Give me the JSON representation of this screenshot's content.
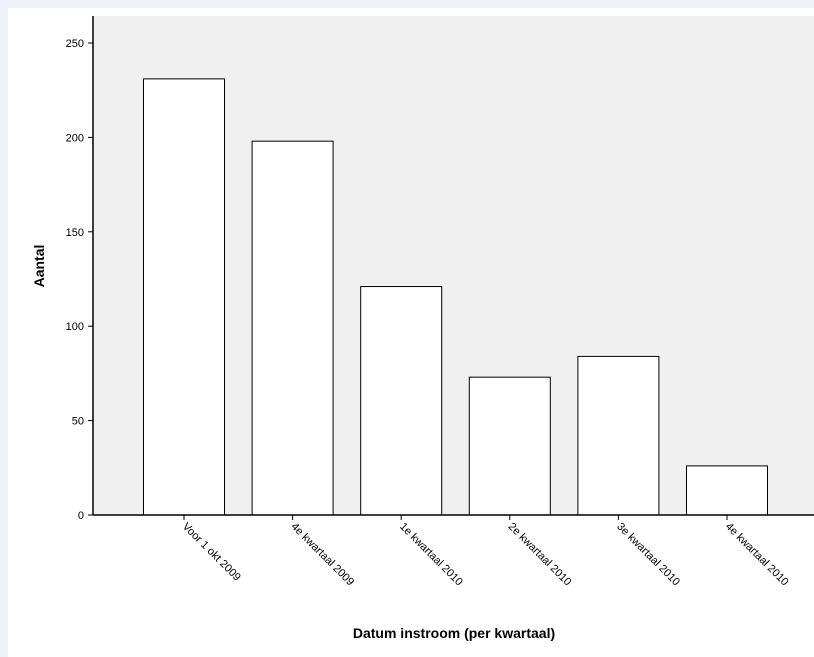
{
  "chart_data": {
    "type": "bar",
    "title": "",
    "xlabel": "Datum instroom (per kwartaal)",
    "ylabel": "Aantal",
    "ylim": [
      0,
      250
    ],
    "yticks": [
      0,
      50,
      100,
      150,
      200,
      250
    ],
    "categories": [
      "Voor 1 okt 2009",
      "4e kwartaal 2009",
      "1e kwartaal 2010",
      "2e kwartaal 2010",
      "3e kwartaal 2010",
      "4e kwartaal 2010"
    ],
    "values": [
      231,
      198,
      121,
      73,
      84,
      26
    ],
    "grid": false,
    "legend": "none",
    "colors": {
      "plot_background": "#f0f0f0",
      "bar_fill": "#ffffff",
      "bar_stroke": "#000000"
    }
  }
}
